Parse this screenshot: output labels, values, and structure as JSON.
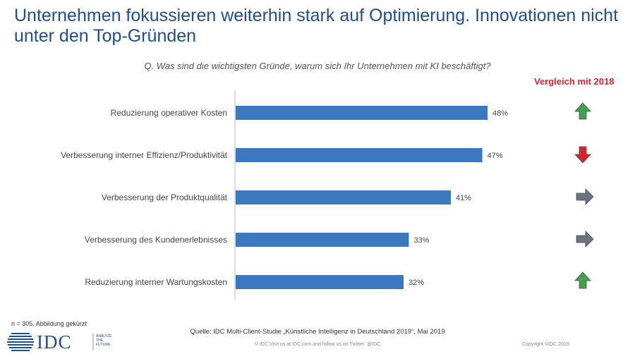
{
  "header": {
    "title": "Unternehmen fokussieren weiterhin stark auf Optimierung. Innovationen nicht unter den Top-Gründen",
    "question": "Q. Was sind die wichtigsten Gründe, warum sich Ihr Unternehmen mit KI beschäftigt?",
    "comparison_title": "Vergleich mit 2018"
  },
  "chart_data": {
    "type": "bar",
    "orientation": "horizontal",
    "title": "Q. Was sind die wichtigsten Gründe, warum sich Ihr Unternehmen mit KI beschäftigt?",
    "categories": [
      "Reduzierung operativer Kosten",
      "Verbesserung interner Effizienz/Produktivität",
      "Verbesserung der Produktqualität",
      "Verbesserung des Kundenerlebnisses",
      "Reduzierung interner Wartungskosten"
    ],
    "values": [
      48,
      47,
      41,
      33,
      32
    ],
    "value_labels": [
      "48%",
      "47%",
      "41%",
      "33%",
      "32%"
    ],
    "unit": "%",
    "xlim": [
      0,
      100
    ],
    "bar_color": "#3c78c0",
    "grid": false,
    "comparison_2018": [
      {
        "trend": "up",
        "icon": "arrow-up-icon",
        "color": "#3fa34d"
      },
      {
        "trend": "down",
        "icon": "arrow-down-icon",
        "color": "#d9232d"
      },
      {
        "trend": "same",
        "icon": "arrow-right-icon",
        "color": "#6b7480"
      },
      {
        "trend": "same",
        "icon": "arrow-right-icon",
        "color": "#6b7480"
      },
      {
        "trend": "up",
        "icon": "arrow-up-icon",
        "color": "#3fa34d"
      }
    ]
  },
  "footer": {
    "sample_note": "n = 305, Abbildung gekürzt",
    "source": "Quelle: IDC Multi-Client-Studie „Künstliche Intelligenz in Deutschland 2019“, Mai 2019",
    "visit": "© IDC   Visit us at IDC.com and follow us on Twitter: @IDC",
    "copyright": "Copyright ©IDC 2019",
    "logo_text": "IDC",
    "logo_tagline": "ANALYZE THE FUTURE"
  }
}
